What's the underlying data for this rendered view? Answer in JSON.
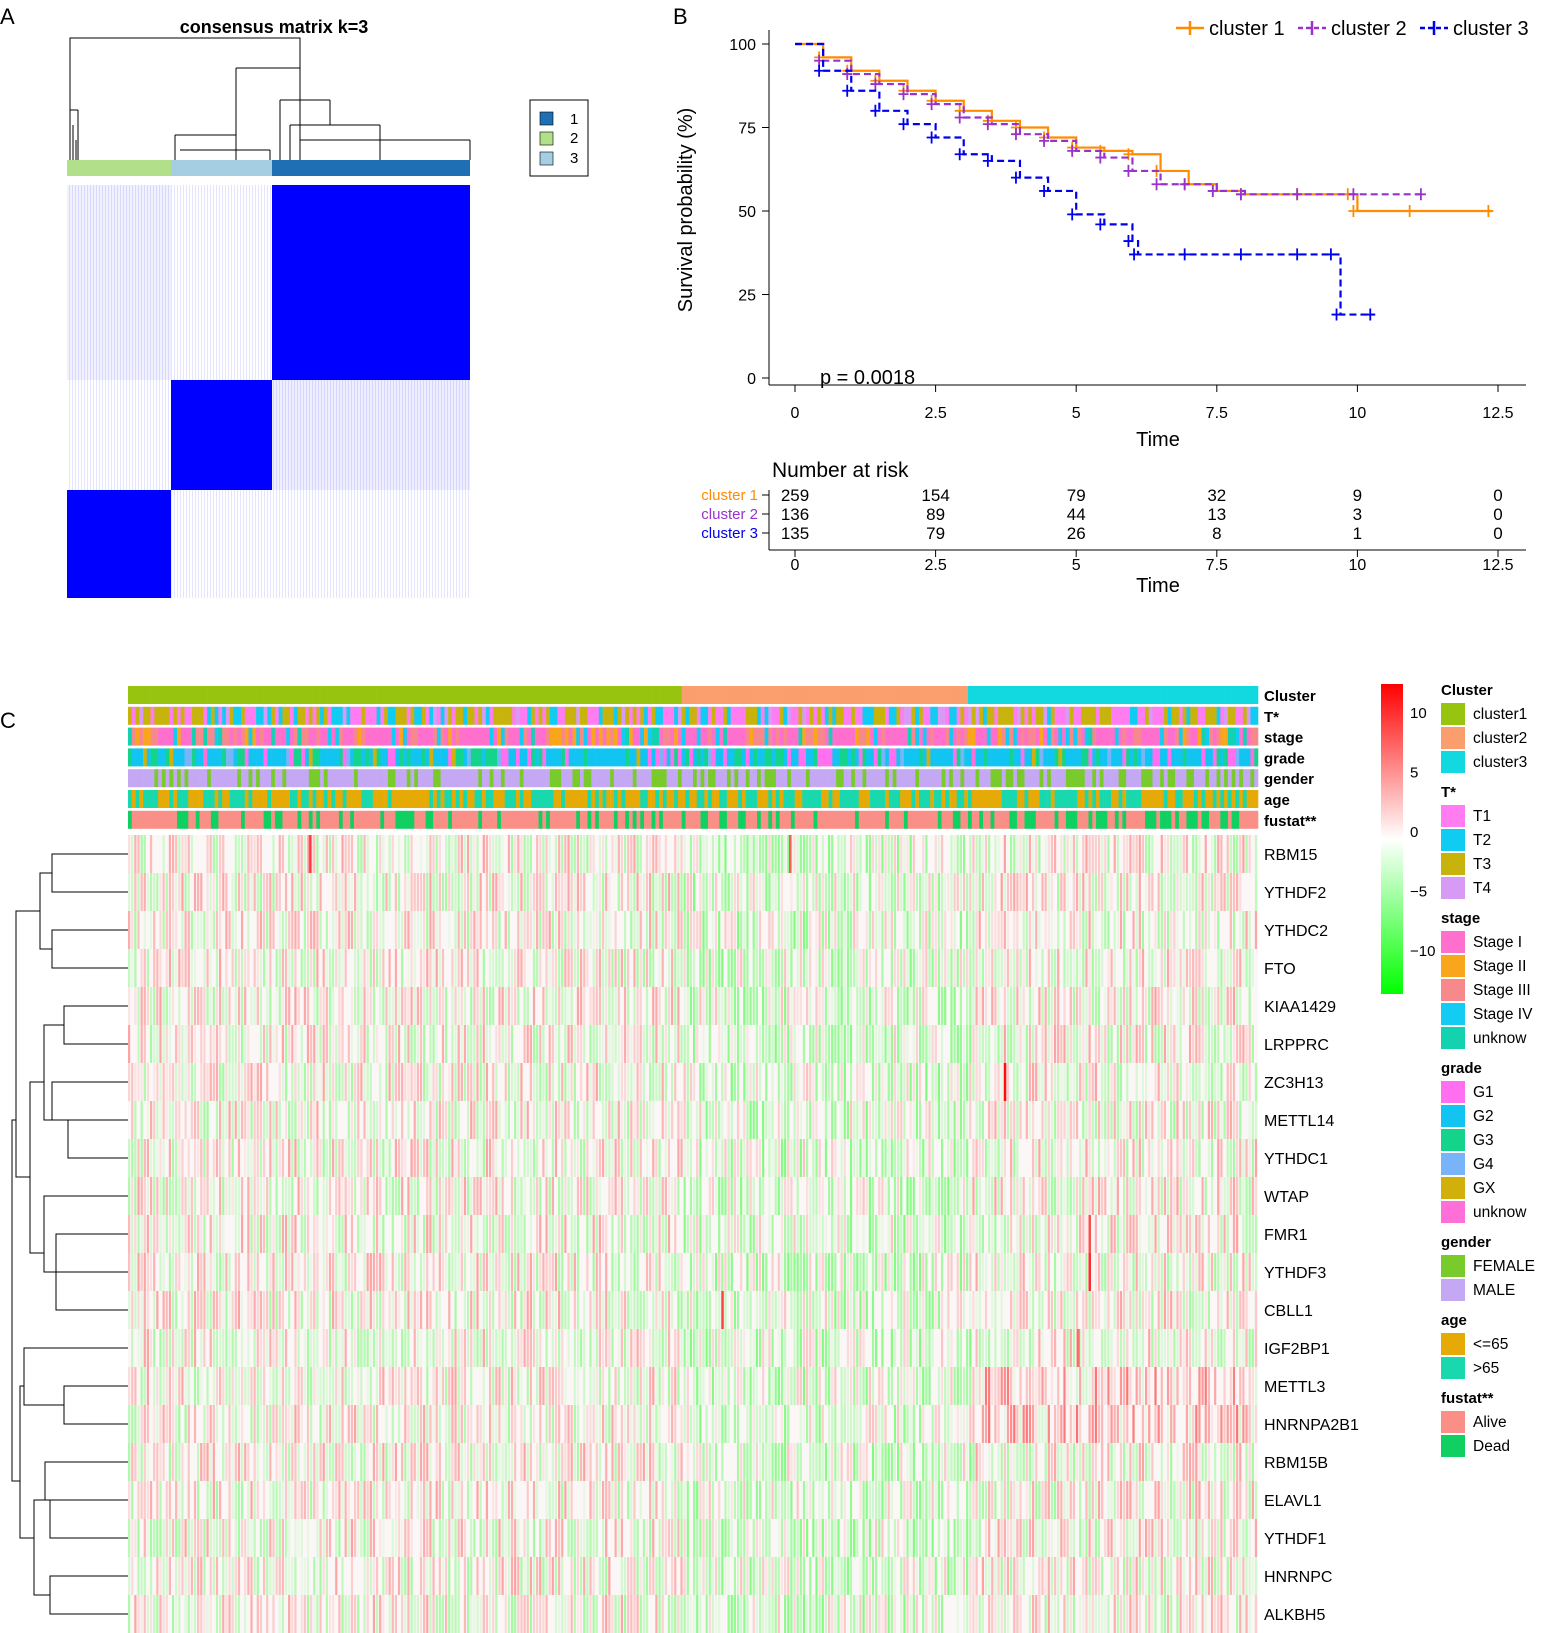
{
  "panel_letters": {
    "a": "A",
    "b": "B",
    "c": "C"
  },
  "colors": {
    "consensus": "#0000ff",
    "cluster_bar": [
      "#1f6fb4",
      "#b2df8a",
      "#a6cee3"
    ],
    "km": [
      "#ff8c00",
      "#9932cc",
      "#0000ee"
    ],
    "heat_high": "#ff0000",
    "heat_mid": "#ffffff",
    "heat_low": "#00ff00"
  },
  "chart_data": [
    {
      "type": "heatmap",
      "title": "consensus matrix k=3",
      "legend": [
        {
          "label": "1",
          "color": "#1f6fb4"
        },
        {
          "label": "2",
          "color": "#b2df8a"
        },
        {
          "label": "3",
          "color": "#a6cee3"
        }
      ],
      "column_groups": [
        {
          "cluster": "2",
          "fraction": 0.26
        },
        {
          "cluster": "3",
          "fraction": 0.25
        },
        {
          "cluster": "1",
          "fraction": 0.49
        }
      ],
      "blocks": [
        {
          "row": "1",
          "col": "1",
          "consensus": 0.95
        },
        {
          "row": "3",
          "col": "3",
          "consensus": 1.0
        },
        {
          "row": "2",
          "col": "2",
          "consensus": 1.0
        },
        {
          "row": "1",
          "col": "2",
          "consensus": 0.05
        },
        {
          "row": "1",
          "col": "3",
          "consensus": 0.02
        },
        {
          "row": "3",
          "col": "1",
          "consensus": 0.08
        }
      ]
    },
    {
      "type": "line",
      "xlabel": "Time",
      "ylabel": "Survival probability (%)",
      "xlim": [
        0,
        12.5
      ],
      "ylim": [
        0,
        100
      ],
      "xticks": [
        "0",
        "2.5",
        "5",
        "7.5",
        "10",
        "12.5"
      ],
      "yticks": [
        "0",
        "25",
        "50",
        "75",
        "100"
      ],
      "legend_position": "top-right",
      "annotation": "p = 0.0018",
      "series": [
        {
          "name": "cluster 1",
          "style": "solid",
          "x": [
            0,
            0.5,
            1,
            1.5,
            2,
            2.5,
            3,
            3.5,
            4,
            4.5,
            5,
            5.5,
            6,
            6.5,
            7,
            7.5,
            8,
            9,
            9.9,
            10,
            11,
            12.4
          ],
          "y": [
            100,
            96,
            92,
            89,
            86,
            83,
            80,
            77,
            75,
            72,
            69,
            68,
            67,
            62,
            58,
            56,
            55,
            55,
            55,
            50,
            50,
            50
          ]
        },
        {
          "name": "cluster 2",
          "style": "dashed",
          "x": [
            0,
            0.5,
            1,
            1.5,
            2,
            2.5,
            3,
            3.5,
            4,
            4.5,
            5,
            5.5,
            6,
            6.5,
            7,
            7.5,
            8,
            9,
            10,
            11.2
          ],
          "y": [
            100,
            95,
            91,
            88,
            85,
            82,
            78,
            76,
            73,
            71,
            68,
            66,
            62,
            58,
            58,
            56,
            55,
            55,
            55,
            55
          ]
        },
        {
          "name": "cluster 3",
          "style": "dashed",
          "x": [
            0,
            0.5,
            1,
            1.5,
            2,
            2.5,
            3,
            3.5,
            4,
            4.5,
            5,
            5.5,
            6,
            6.1,
            7,
            8,
            9,
            9.6,
            9.7,
            10.3
          ],
          "y": [
            100,
            92,
            86,
            80,
            76,
            72,
            67,
            65,
            60,
            56,
            49,
            46,
            41,
            37,
            37,
            37,
            37,
            37,
            19,
            19
          ]
        }
      ],
      "risk_table": {
        "title": "Number at risk",
        "xlabel": "Time",
        "times": [
          0,
          2.5,
          5,
          7.5,
          10,
          12.5
        ],
        "rows": [
          {
            "name": "cluster 1",
            "counts": [
              "259",
              "154",
              "79",
              "32",
              "9",
              "0"
            ]
          },
          {
            "name": "cluster 2",
            "counts": [
              "136",
              "89",
              "44",
              "13",
              "3",
              "0"
            ]
          },
          {
            "name": "cluster 3",
            "counts": [
              "135",
              "79",
              "26",
              "8",
              "1",
              "0"
            ]
          }
        ]
      }
    },
    {
      "type": "heatmap",
      "genes": [
        "RBM15",
        "YTHDF2",
        "YTHDC2",
        "FTO",
        "KIAA1429",
        "LRPPRC",
        "ZC3H13",
        "METTL14",
        "YTHDC1",
        "WTAP",
        "FMR1",
        "YTHDF3",
        "CBLL1",
        "IGF2BP1",
        "METTL3",
        "HNRNPA2B1",
        "RBM15B",
        "ELAVL1",
        "YTHDF1",
        "HNRNPC",
        "ALKBH5"
      ],
      "annotation_tracks": [
        "Cluster",
        "T*",
        "stage",
        "grade",
        "gender",
        "age",
        "fustat**"
      ],
      "cluster_fractions": [
        {
          "name": "cluster1",
          "fraction": 0.49
        },
        {
          "name": "cluster2",
          "fraction": 0.255
        },
        {
          "name": "cluster3",
          "fraction": 0.255
        }
      ],
      "color_scale": {
        "ticks": [
          "10",
          "5",
          "0",
          "−5",
          "−10"
        ],
        "range": [
          -13,
          13
        ]
      },
      "hot_spots": [
        {
          "gene": "ZC3H13",
          "position": 0.775,
          "value": 12
        },
        {
          "gene": "YTHDF3",
          "position": 0.85,
          "value": 10
        },
        {
          "gene": "CBLL1",
          "position": 0.525,
          "value": 9
        },
        {
          "gene": "RBM15",
          "position": 0.16,
          "value": 9
        },
        {
          "gene": "RBM15",
          "position": 0.585,
          "value": 8
        },
        {
          "gene": "FMR1",
          "position": 0.85,
          "value": 8
        },
        {
          "gene": "IGF2BP1",
          "position": 0.84,
          "value": 7
        }
      ],
      "legend_groups": [
        {
          "title": "Cluster",
          "items": [
            {
              "label": "cluster1",
              "color": "#97c40f"
            },
            {
              "label": "cluster2",
              "color": "#fa9e6e"
            },
            {
              "label": "cluster3",
              "color": "#12d8e0"
            }
          ]
        },
        {
          "title": "T*",
          "items": [
            {
              "label": "T1",
              "color": "#ff7df0"
            },
            {
              "label": "T2",
              "color": "#10cbf2"
            },
            {
              "label": "T3",
              "color": "#c8b20c"
            },
            {
              "label": "T4",
              "color": "#d79af5"
            }
          ]
        },
        {
          "title": "stage",
          "items": [
            {
              "label": "Stage I",
              "color": "#ff6fcd"
            },
            {
              "label": "Stage II",
              "color": "#f9a61c"
            },
            {
              "label": "Stage III",
              "color": "#f7898d"
            },
            {
              "label": "Stage IV",
              "color": "#12ccf3"
            },
            {
              "label": "unknow",
              "color": "#12d2b0"
            }
          ]
        },
        {
          "title": "grade",
          "items": [
            {
              "label": "G1",
              "color": "#ff6ff0"
            },
            {
              "label": "G2",
              "color": "#12c4f2"
            },
            {
              "label": "G3",
              "color": "#14d48c"
            },
            {
              "label": "G4",
              "color": "#7ab4f8"
            },
            {
              "label": "GX",
              "color": "#d2b00c"
            },
            {
              "label": "unknow",
              "color": "#ff6fd8"
            }
          ]
        },
        {
          "title": "gender",
          "items": [
            {
              "label": "FEMALE",
              "color": "#78cb2a"
            },
            {
              "label": "MALE",
              "color": "#c4a8f4"
            }
          ]
        },
        {
          "title": "age",
          "items": [
            {
              "label": "<=65",
              "color": "#e6aa06"
            },
            {
              "label": ">65",
              "color": "#1ad8ae"
            }
          ]
        },
        {
          "title": "fustat**",
          "items": [
            {
              "label": "Alive",
              "color": "#f98f86"
            },
            {
              "label": "Dead",
              "color": "#0fd060"
            }
          ]
        }
      ]
    }
  ]
}
